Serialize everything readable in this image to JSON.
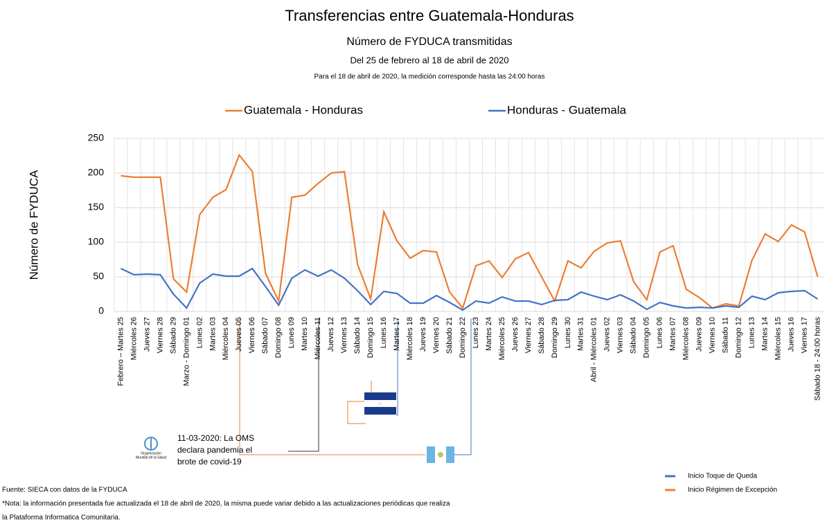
{
  "chart_data": {
    "type": "line",
    "title": "Transferencias entre Guatemala-Honduras",
    "subtitle": "Número de FYDUCA transmitidas",
    "date_range": "Del 25 de febrero al 18 de abril de 2020",
    "note_top": "Para el 18 de abril de 2020, la medición corresponde hasta las 24:00 horas",
    "ylabel": "Número de FYDUCA",
    "categories": [
      "Febrero – Martes 25",
      "Miércoles 26",
      "Jueves 27",
      "Viernes 28",
      "Sábado 29",
      "Marzo - Domingo 01",
      "Lunes 02",
      "Martes 03",
      "Miércoles 04",
      "Jueves 05",
      "Viernes 06",
      "Sábado 07",
      "Domingo 08",
      "Lunes 09",
      "Martes 10",
      "Miércoles 11",
      "Jueves 12",
      "Viernes 13",
      "Sábado 14",
      "Domingo 15",
      "Lunes 16",
      "Martes 17",
      "Miércoles 18",
      "Jueves 19",
      "Viernes 20",
      "Sábado 21",
      "Domingo 22",
      "Lunes 23",
      "Martes 24",
      "Miércoles 25",
      "Jueves 26",
      "Viernes 27",
      "Sábado 28",
      "Domingo 29",
      "Lunes 30",
      "Martes 31",
      "Abril - Miércoles 01",
      "Jueves 02",
      "Viernes 03",
      "Sábado 04",
      "Domingo 05",
      "Lunes 06",
      "Martes 07",
      "Miércoles 08",
      "Jueves 09",
      "Viernes 10",
      "Sábado 11",
      "Domingo 12",
      "Lunes 13",
      "Martes 14",
      "Miércoles 15",
      "Jueves 16",
      "Viernes 17",
      "Sábado 18 - 24:00 horas"
    ],
    "series": [
      {
        "name": "Guatemala - Honduras",
        "color": "#ed7d31",
        "values": [
          196,
          194,
          194,
          194,
          47,
          28,
          140,
          165,
          176,
          226,
          202,
          55,
          15,
          165,
          168,
          185,
          200,
          202,
          68,
          18,
          144,
          102,
          77,
          88,
          86,
          28,
          5,
          66,
          73,
          49,
          76,
          85,
          50,
          15,
          73,
          63,
          87,
          99,
          102,
          43,
          17,
          86,
          95,
          32,
          20,
          5,
          11,
          8,
          74,
          112,
          101,
          125,
          115,
          50
        ]
      },
      {
        "name": "Honduras - Guatemala",
        "color": "#4472c4",
        "values": [
          62,
          53,
          54,
          53,
          25,
          5,
          41,
          54,
          51,
          51,
          62,
          36,
          9,
          48,
          60,
          51,
          60,
          48,
          30,
          10,
          29,
          26,
          12,
          12,
          23,
          13,
          2,
          15,
          12,
          21,
          15,
          15,
          10,
          16,
          17,
          28,
          22,
          17,
          24,
          15,
          3,
          13,
          8,
          5,
          6,
          5,
          8,
          6,
          22,
          17,
          27,
          29,
          30,
          18
        ]
      }
    ],
    "ylim": [
      0,
      250
    ],
    "yticks": [
      0,
      50,
      100,
      150,
      200,
      250
    ],
    "grid": true,
    "annotation": [
      "11-03-2020: La OMS",
      "declara pandemia el",
      "brote de covid-19"
    ],
    "oms_logo_text": [
      "Organización",
      "Mundial de la Salud"
    ],
    "marker_legend": [
      {
        "label": "Inicio Toque de Queda",
        "color": "#4472c4"
      },
      {
        "label": "Inicio Régimen de Excepción",
        "color": "#ed7d31"
      }
    ],
    "footer": [
      "Fuente: SIECA con datos de la FYDUCA",
      "*Nota: la información presentada fue actualizada el 18 de abril de 2020, la misma puede variar debido a las actualizaciones periódicas que realiza",
      "la Plataforma Informatica Comunitaria."
    ]
  }
}
